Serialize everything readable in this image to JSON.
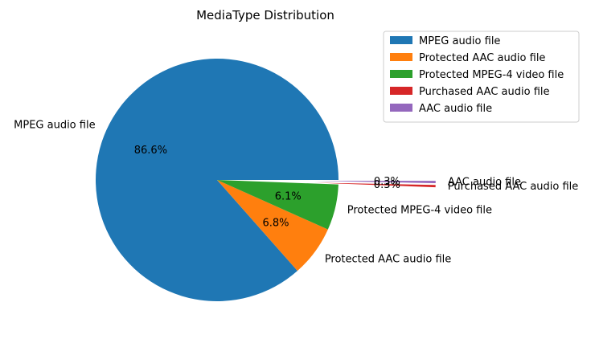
{
  "chart_data": {
    "type": "pie",
    "title": "MediaType Distribution",
    "slices": [
      {
        "label": "MPEG audio file",
        "value": 86.6,
        "pct_label": "86.6%",
        "color": "#1f77b4",
        "explode": 0
      },
      {
        "label": "Protected AAC audio file",
        "value": 6.8,
        "pct_label": "6.8%",
        "color": "#ff7f0e",
        "explode": 0
      },
      {
        "label": "Protected MPEG-4 video file",
        "value": 6.1,
        "pct_label": "6.1%",
        "color": "#2ca02c",
        "explode": 0
      },
      {
        "label": "Purchased AAC audio file",
        "value": 0.3,
        "pct_label": "0.3%",
        "color": "#d62728",
        "explode": 0.8
      },
      {
        "label": "AAC audio file",
        "value": 0.3,
        "pct_label": "0.3%",
        "color": "#9467bd",
        "explode": 0.8
      }
    ],
    "start_angle_deg": 0,
    "direction": "counterclockwise",
    "legend": {
      "placement": "top-right",
      "entries": [
        "MPEG audio file",
        "Protected AAC audio file",
        "Protected MPEG-4 video file",
        "Purchased AAC audio file",
        "AAC audio file"
      ]
    }
  }
}
